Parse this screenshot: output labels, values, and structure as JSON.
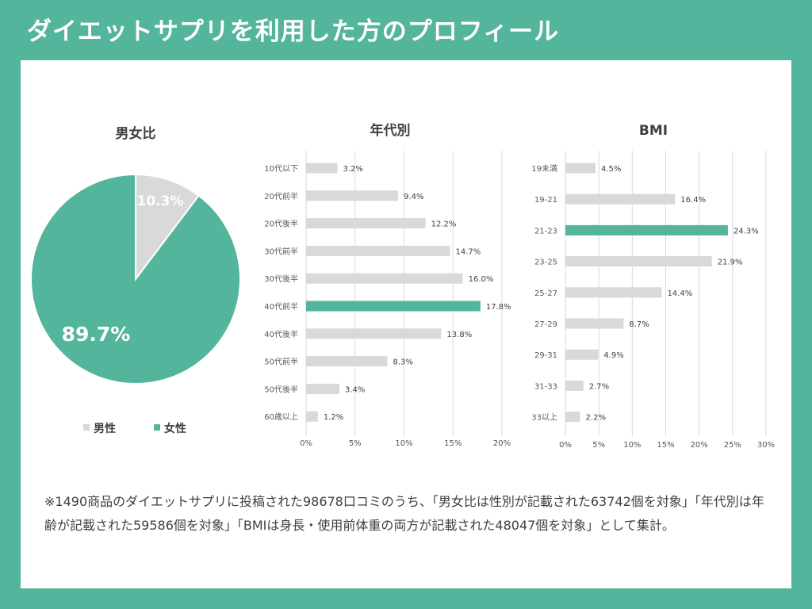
{
  "page": {
    "title": "ダイエットサプリを利用した方のプロフィール",
    "footnote": "※1490商品のダイエットサプリに投稿された98678口コミのうち、「男女比は性別が記載された63742個を対象」「年代別は年齢が記載された59586個を対象」「BMIは身長・使用前体重の両方が記載された48047個を対象」として集計。"
  },
  "colors": {
    "brand": "#52b59c",
    "bar": "#d9d9d9",
    "highlight": "#52b59c"
  },
  "chart_data": [
    {
      "type": "pie",
      "title": "男女比",
      "categories": [
        "男性",
        "女性"
      ],
      "values": [
        10.3,
        89.7
      ],
      "labels": [
        "10.3%",
        "89.7%"
      ],
      "colors": [
        "#d9d9d9",
        "#52b59c"
      ],
      "legend": "bottom"
    },
    {
      "type": "bar",
      "orientation": "horizontal",
      "title": "年代別",
      "categories": [
        "10代以下",
        "20代前半",
        "20代後半",
        "30代前半",
        "30代後半",
        "40代前半",
        "40代後半",
        "50代前半",
        "50代後半",
        "60歳以上"
      ],
      "values": [
        3.2,
        9.4,
        12.2,
        14.7,
        16.0,
        17.8,
        13.8,
        8.3,
        3.4,
        1.2
      ],
      "labels": [
        "3.2%",
        "9.4%",
        "12.2%",
        "14.7%",
        "16.0%",
        "17.8%",
        "13.8%",
        "8.3%",
        "3.4%",
        "1.2%"
      ],
      "highlight_index": 5,
      "xlim": [
        0,
        20
      ],
      "xticks": [
        "0%",
        "5%",
        "10%",
        "15%",
        "20%"
      ],
      "grid": true
    },
    {
      "type": "bar",
      "orientation": "horizontal",
      "title": "BMI",
      "categories": [
        "19未満",
        "19-21",
        "21-23",
        "23-25",
        "25-27",
        "27-29",
        "29-31",
        "31-33",
        "33以上"
      ],
      "values": [
        4.5,
        16.4,
        24.3,
        21.9,
        14.4,
        8.7,
        4.9,
        2.7,
        2.2
      ],
      "labels": [
        "4.5%",
        "16.4%",
        "24.3%",
        "21.9%",
        "14.4%",
        "8.7%",
        "4.9%",
        "2.7%",
        "2.2%"
      ],
      "highlight_index": 2,
      "xlim": [
        0,
        30
      ],
      "xticks": [
        "0%",
        "5%",
        "10%",
        "15%",
        "20%",
        "25%",
        "30%"
      ],
      "grid": true
    }
  ]
}
